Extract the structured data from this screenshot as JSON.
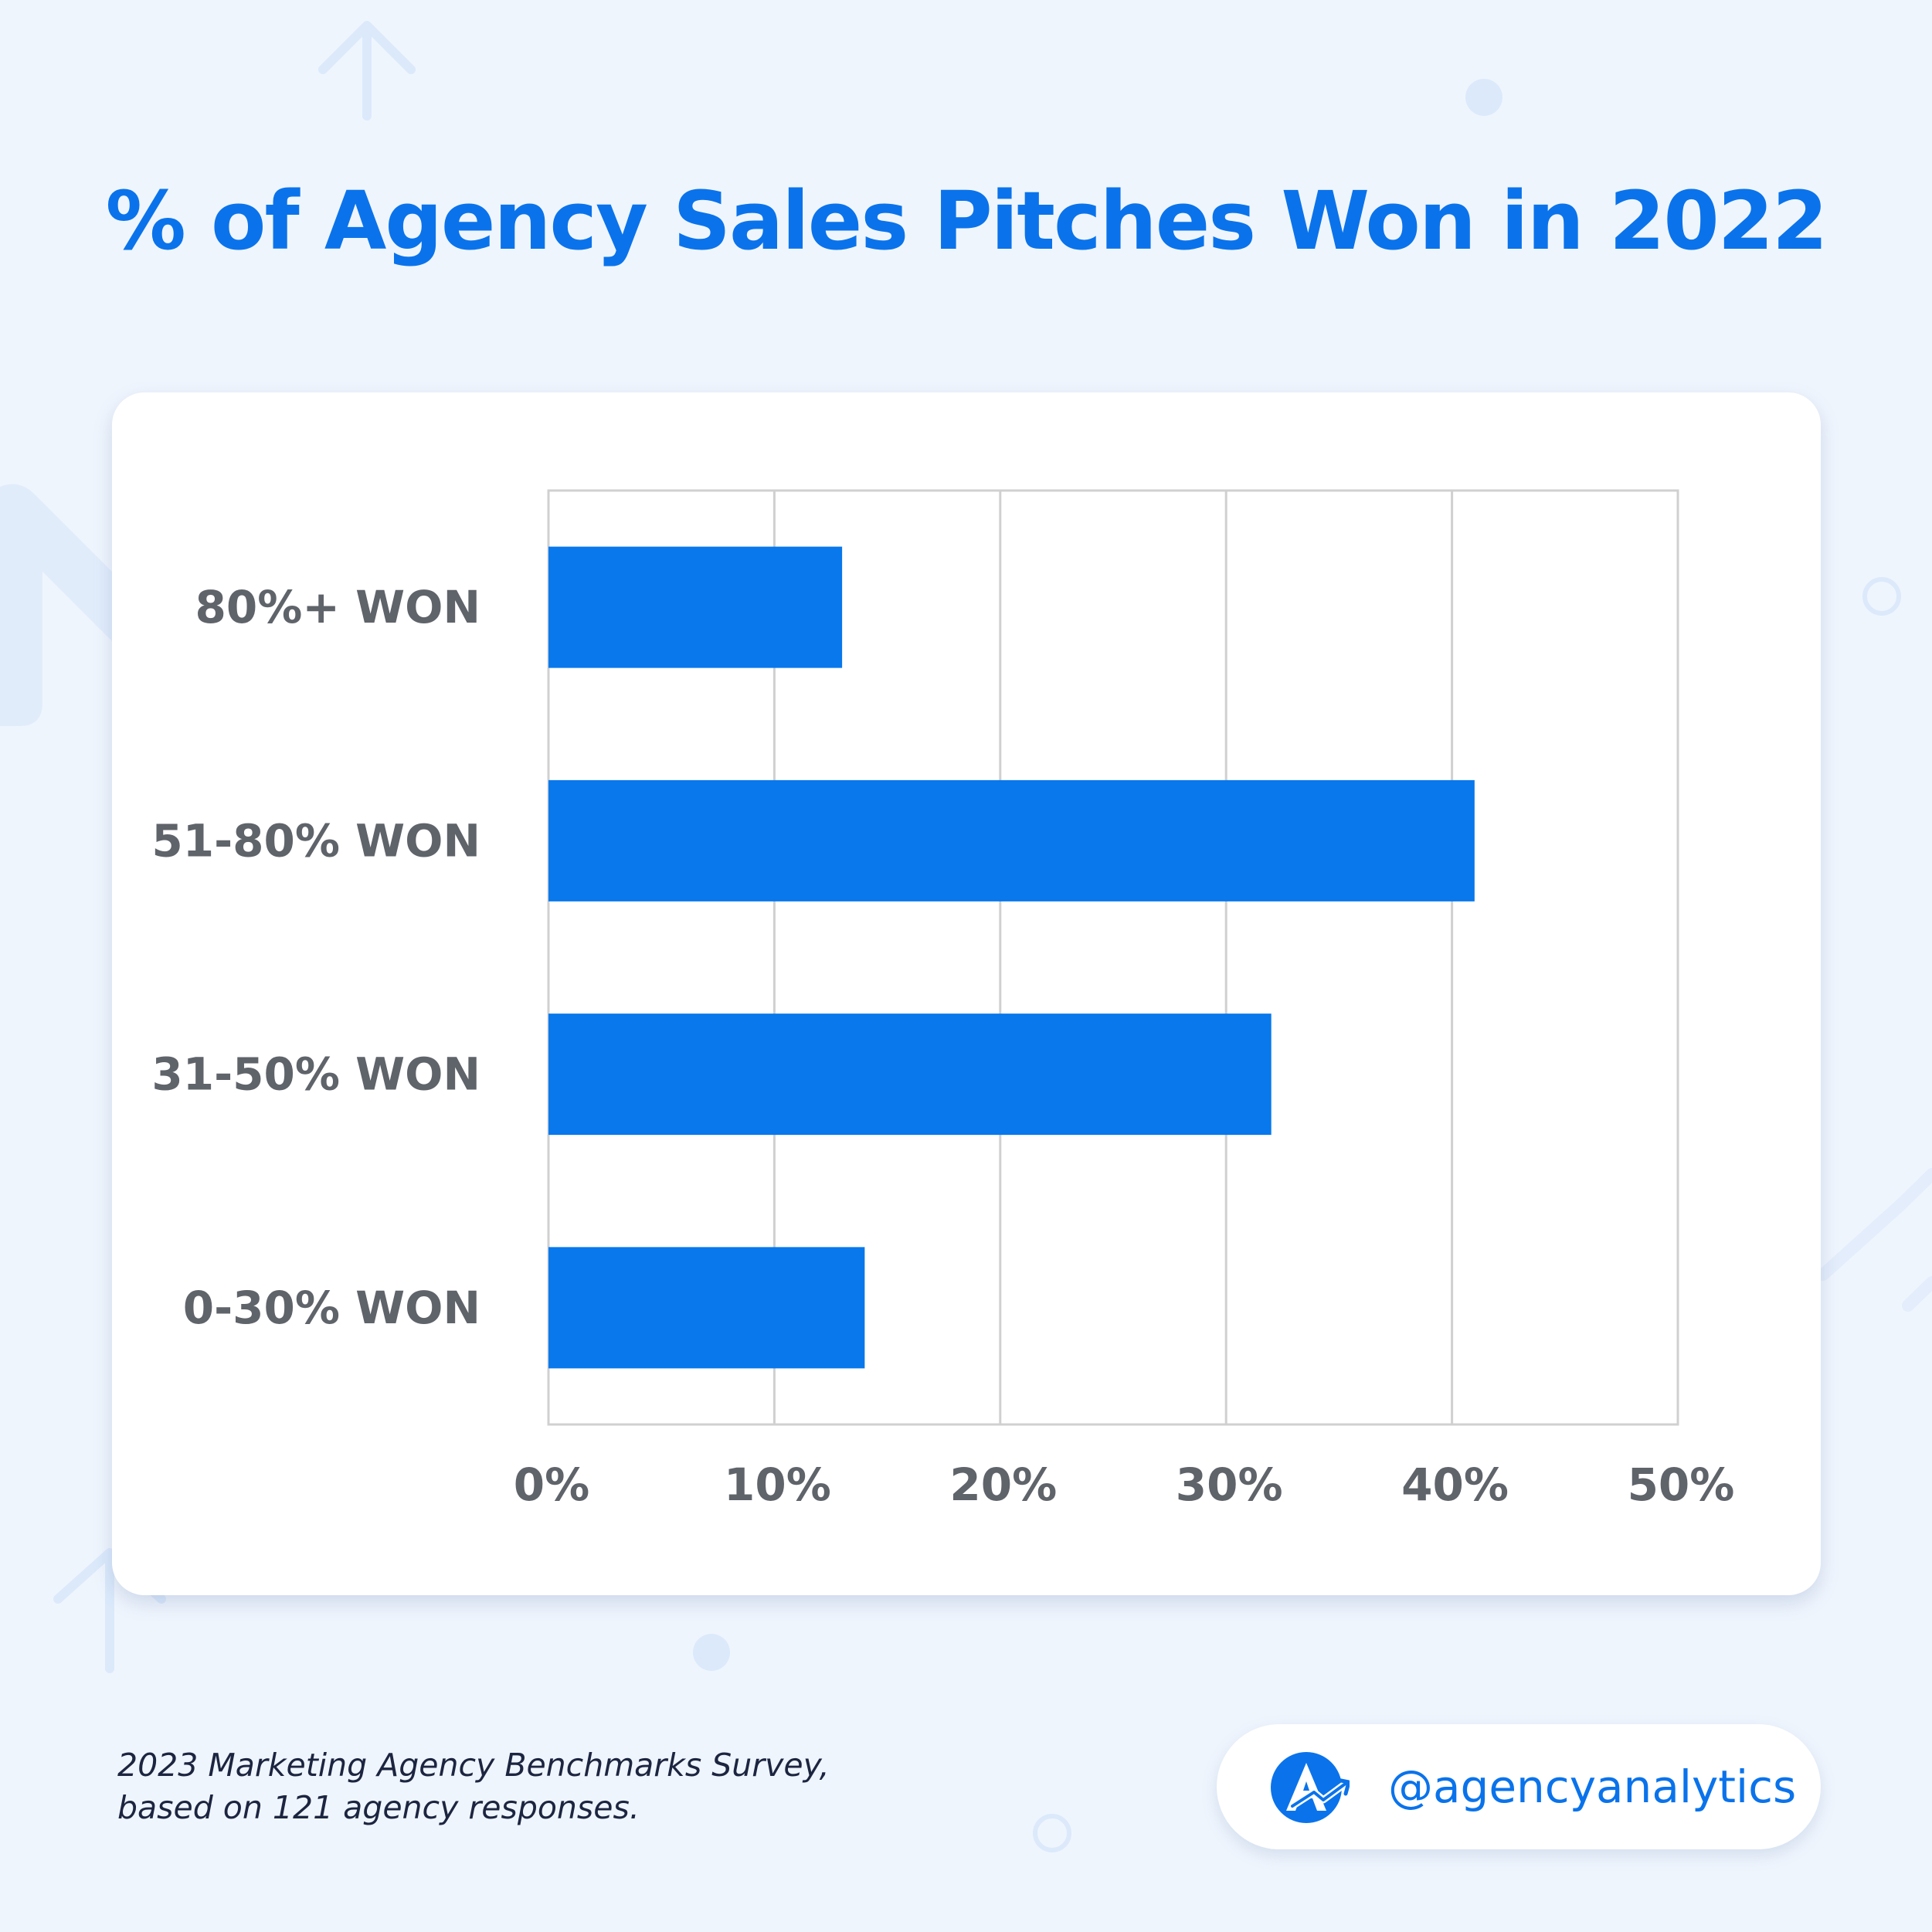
{
  "title": "% of Agency Sales Pitches Won in 2022",
  "colors": {
    "background": "#eff5fd",
    "accent": "#0a73eb",
    "bar": "#0878ec",
    "label_text": "#5f636a",
    "grid": "#d0d0d0",
    "decor": "#dbe9fb"
  },
  "chart_data": {
    "type": "bar",
    "orientation": "horizontal",
    "title": "% of Agency Sales Pitches Won in 2022",
    "categories": [
      "80%+ WON",
      "51-80% WON",
      "31-50% WON",
      "0-30% WON"
    ],
    "values": [
      13,
      41,
      32,
      14
    ],
    "unit": "%",
    "xlim": [
      0,
      50
    ],
    "xticks": [
      0,
      10,
      20,
      30,
      40,
      50
    ],
    "xtick_labels": [
      "0%",
      "10%",
      "20%",
      "30%",
      "40%",
      "50%"
    ],
    "xlabel": "",
    "ylabel": "",
    "grid": true,
    "legend": "none"
  },
  "footnote": {
    "line1": "2023 Marketing Agency Benchmarks Survey,",
    "line2": "based on 121 agency responses."
  },
  "brand": {
    "handle": "@agencyanalytics",
    "logo_icon": "agencyanalytics-logo-icon"
  }
}
